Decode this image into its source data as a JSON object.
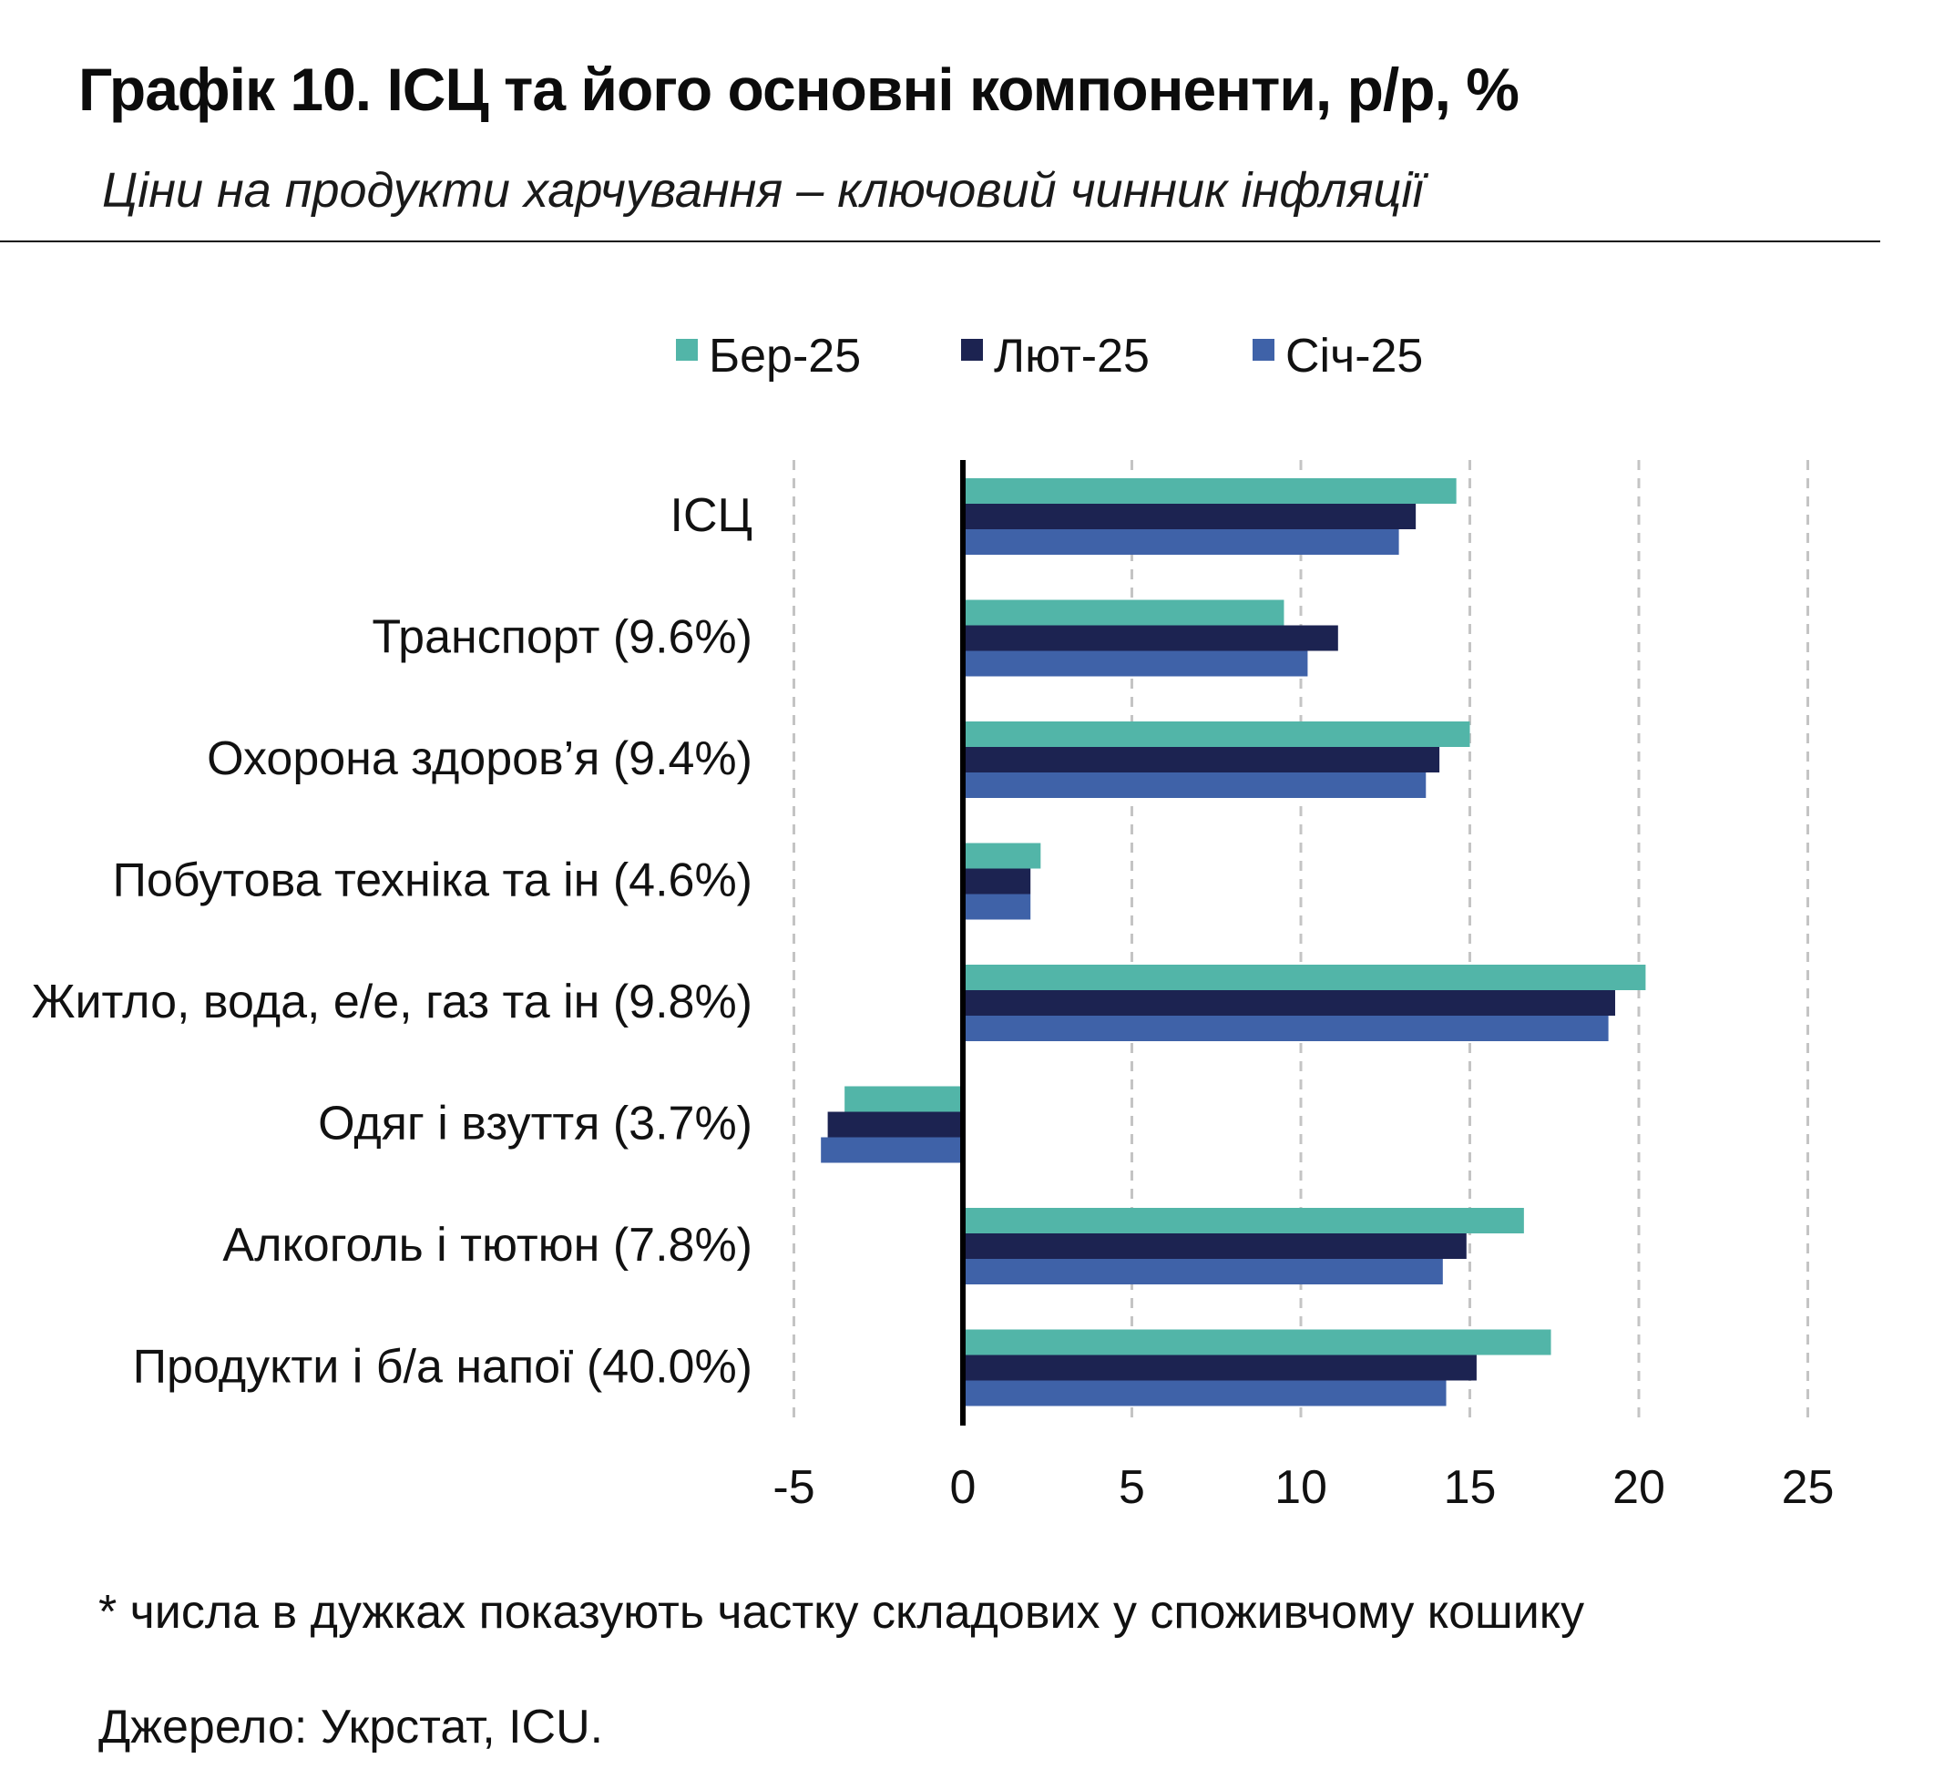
{
  "title": "Графік 10. ІСЦ та його основні компоненти, р/р, %",
  "subtitle": "Ціни на продукти харчування – ключовий чинник інфляції",
  "footnote": "* числа в дужках показують частку складових у споживчому кошику",
  "source": "Джерело: Укрстат, ICU.",
  "chart_data": {
    "type": "bar",
    "orientation": "horizontal",
    "categories": [
      "ІСЦ",
      "Транспорт (9.6%)",
      "Охорона здоров’я (9.4%)",
      "Побутова техніка та ін (4.6%)",
      "Житло, вода, е/е, газ та ін (9.8%)",
      "Одяг і взуття (3.7%)",
      "Алкоголь і тютюн (7.8%)",
      "Продукти і б/а напої (40.0%)"
    ],
    "series": [
      {
        "name": "Бер-25",
        "color": "#52b5a8",
        "values": [
          14.6,
          9.5,
          15.0,
          2.3,
          20.2,
          -3.5,
          16.6,
          17.4
        ]
      },
      {
        "name": "Лют-25",
        "color": "#1c2351",
        "values": [
          13.4,
          11.1,
          14.1,
          2.0,
          19.3,
          -4.0,
          14.9,
          15.2
        ]
      },
      {
        "name": "Січ-25",
        "color": "#3f62a8",
        "values": [
          12.9,
          10.2,
          13.7,
          2.0,
          19.1,
          -4.2,
          14.2,
          14.3
        ]
      }
    ],
    "xlim": [
      -5,
      25
    ],
    "xticks": [
      -5,
      0,
      5,
      10,
      15,
      20,
      25
    ],
    "grid": true,
    "legend_position": "top"
  }
}
